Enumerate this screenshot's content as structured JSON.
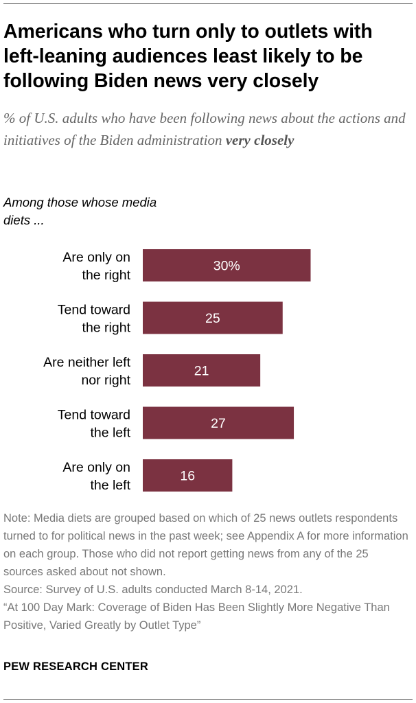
{
  "title": "Americans who turn only to outlets with left-leaning audiences least likely to be following Biden news very closely",
  "subtitle": {
    "main": "% of U.S. adults who have been following news about the actions and initiatives of the Biden administration ",
    "emphasis": "very closely"
  },
  "group_label": "Among those whose media diets ...",
  "chart_data": {
    "type": "bar",
    "orientation": "horizontal",
    "categories": [
      [
        "Are only on",
        "the right"
      ],
      [
        "Tend toward",
        "the right"
      ],
      [
        "Are neither left",
        "nor right"
      ],
      [
        "Tend toward",
        "the left"
      ],
      [
        "Are only on",
        "the left"
      ]
    ],
    "values": [
      30,
      25,
      21,
      27,
      16
    ],
    "value_labels": [
      "30%",
      "25",
      "21",
      "27",
      "16"
    ],
    "bar_color": "#7b3241",
    "xlim": [
      0,
      42
    ]
  },
  "notes": {
    "note": "Note: Media diets are grouped based on which of 25 news outlets respondents turned to for political news in the past week; see Appendix A for more information on each group. Those who did not report getting news from any of the 25 sources asked about not shown.",
    "source": "Source: Survey of U.S. adults conducted March 8-14, 2021.",
    "report": "“At 100 Day Mark: Coverage of Biden Has Been Slightly More Negative Than Positive, Varied Greatly by Outlet Type”"
  },
  "footer": "PEW RESEARCH CENTER"
}
